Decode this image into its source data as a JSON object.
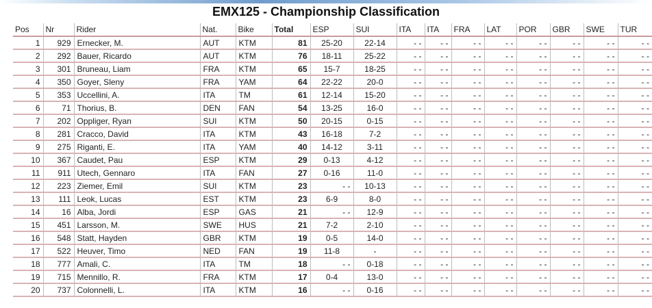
{
  "title": "EMX125 - Championship Classification",
  "table": {
    "header": [
      "Pos",
      "Nr",
      "Rider",
      "Nat.",
      "Bike",
      "Total",
      "ESP",
      "SUI",
      "ITA",
      "ITA",
      "FRA",
      "LAT",
      "POR",
      "GBR",
      "SWE",
      "TUR"
    ],
    "rows": [
      [
        1,
        929,
        "Ernecker, M.",
        "AUT",
        "KTM",
        81,
        "25-20",
        "22-14",
        "- -",
        "- -",
        "- -",
        "- -",
        "- -",
        "- -",
        "- -",
        "- -"
      ],
      [
        2,
        292,
        "Bauer, Ricardo",
        "AUT",
        "KTM",
        76,
        "18-11",
        "25-22",
        "- -",
        "- -",
        "- -",
        "- -",
        "- -",
        "- -",
        "- -",
        "- -"
      ],
      [
        3,
        301,
        "Bruneau, Liam",
        "FRA",
        "KTM",
        65,
        "15-7",
        "18-25",
        "- -",
        "- -",
        "- -",
        "- -",
        "- -",
        "- -",
        "- -",
        "- -"
      ],
      [
        4,
        350,
        "Goyer, Sleny",
        "FRA",
        "YAM",
        64,
        "22-22",
        "20-0",
        "- -",
        "- -",
        "- -",
        "- -",
        "- -",
        "- -",
        "- -",
        "- -"
      ],
      [
        5,
        353,
        "Uccellini, A.",
        "ITA",
        "TM",
        61,
        "12-14",
        "15-20",
        "- -",
        "- -",
        "- -",
        "- -",
        "- -",
        "- -",
        "- -",
        "- -"
      ],
      [
        6,
        71,
        "Thorius, B.",
        "DEN",
        "FAN",
        54,
        "13-25",
        "16-0",
        "- -",
        "- -",
        "- -",
        "- -",
        "- -",
        "- -",
        "- -",
        "- -"
      ],
      [
        7,
        202,
        "Oppliger, Ryan",
        "SUI",
        "KTM",
        50,
        "20-15",
        "0-15",
        "- -",
        "- -",
        "- -",
        "- -",
        "- -",
        "- -",
        "- -",
        "- -"
      ],
      [
        8,
        281,
        "Cracco, David",
        "ITA",
        "KTM",
        43,
        "16-18",
        "7-2",
        "- -",
        "- -",
        "- -",
        "- -",
        "- -",
        "- -",
        "- -",
        "- -"
      ],
      [
        9,
        275,
        "Riganti, E.",
        "ITA",
        "YAM",
        40,
        "14-12",
        "3-11",
        "- -",
        "- -",
        "- -",
        "- -",
        "- -",
        "- -",
        "- -",
        "- -"
      ],
      [
        10,
        367,
        "Caudet, Pau",
        "ESP",
        "KTM",
        29,
        "0-13",
        "4-12",
        "- -",
        "- -",
        "- -",
        "- -",
        "- -",
        "- -",
        "- -",
        "- -"
      ],
      [
        11,
        911,
        "Utech, Gennaro",
        "ITA",
        "FAN",
        27,
        "0-16",
        "11-0",
        "- -",
        "- -",
        "- -",
        "- -",
        "- -",
        "- -",
        "- -",
        "- -"
      ],
      [
        12,
        223,
        "Ziemer, Emil",
        "SUI",
        "KTM",
        23,
        "- -",
        "10-13",
        "- -",
        "- -",
        "- -",
        "- -",
        "- -",
        "- -",
        "- -",
        "- -"
      ],
      [
        13,
        111,
        "Leok, Lucas",
        "EST",
        "KTM",
        23,
        "6-9",
        "8-0",
        "- -",
        "- -",
        "- -",
        "- -",
        "- -",
        "- -",
        "- -",
        "- -"
      ],
      [
        14,
        16,
        "Alba, Jordi",
        "ESP",
        "GAS",
        21,
        "- -",
        "12-9",
        "- -",
        "- -",
        "- -",
        "- -",
        "- -",
        "- -",
        "- -",
        "- -"
      ],
      [
        15,
        451,
        "Larsson, M.",
        "SWE",
        "HUS",
        21,
        "7-2",
        "2-10",
        "- -",
        "- -",
        "- -",
        "- -",
        "- -",
        "- -",
        "- -",
        "- -"
      ],
      [
        16,
        548,
        "Statt, Hayden",
        "GBR",
        "KTM",
        19,
        "0-5",
        "14-0",
        "- -",
        "- -",
        "- -",
        "- -",
        "- -",
        "- -",
        "- -",
        "- -"
      ],
      [
        17,
        522,
        "Heuver, Timo",
        "NED",
        "FAN",
        19,
        "11-8",
        "-",
        "- -",
        "- -",
        "- -",
        "- -",
        "- -",
        "- -",
        "- -",
        "- -"
      ],
      [
        18,
        777,
        "Amali, C.",
        "ITA",
        "TM",
        18,
        "- -",
        "0-18",
        "- -",
        "- -",
        "- -",
        "- -",
        "- -",
        "- -",
        "- -",
        "- -"
      ],
      [
        19,
        715,
        "Mennillo, R.",
        "FRA",
        "KTM",
        17,
        "0-4",
        "13-0",
        "- -",
        "- -",
        "- -",
        "- -",
        "- -",
        "- -",
        "- -",
        "- -"
      ],
      [
        20,
        737,
        "Colonnelli, L.",
        "ITA",
        "KTM",
        16,
        "- -",
        "0-16",
        "- -",
        "- -",
        "- -",
        "- -",
        "- -",
        "- -",
        "- -",
        "- -"
      ]
    ]
  }
}
